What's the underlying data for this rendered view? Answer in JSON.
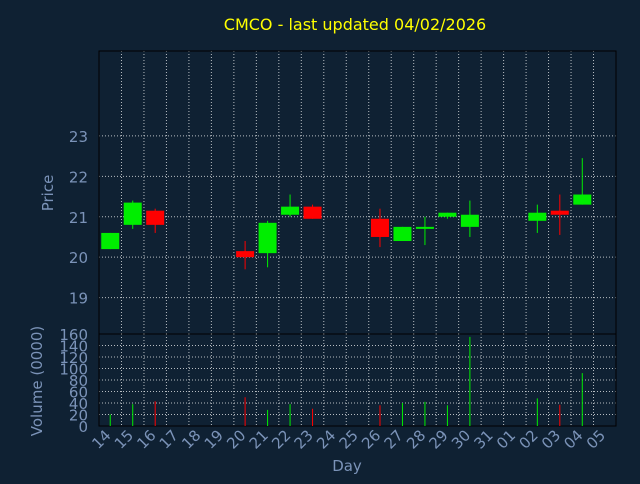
{
  "chart_data": {
    "type": "candlestick",
    "title": "CMCO - last updated 04/02/2026",
    "xlabel": "Day",
    "price_panel": {
      "ylabel": "Price",
      "ylim": [
        18.1,
        25.1
      ],
      "yticks": [
        19,
        20,
        21,
        22,
        23
      ],
      "candles": [
        {
          "day": "14",
          "open": 20.2,
          "high": 20.6,
          "low": 20.2,
          "close": 20.6
        },
        {
          "day": "15",
          "open": 20.8,
          "high": 21.4,
          "low": 20.7,
          "close": 21.35
        },
        {
          "day": "16",
          "open": 21.15,
          "high": 21.2,
          "low": 20.6,
          "close": 20.8
        },
        {
          "day": "20",
          "open": 20.15,
          "high": 20.4,
          "low": 19.7,
          "close": 20.0
        },
        {
          "day": "21",
          "open": 20.1,
          "high": 20.9,
          "low": 19.75,
          "close": 20.85
        },
        {
          "day": "22",
          "open": 21.05,
          "high": 21.55,
          "low": 21.0,
          "close": 21.25
        },
        {
          "day": "23",
          "open": 21.25,
          "high": 21.3,
          "low": 20.95,
          "close": 20.95
        },
        {
          "day": "26",
          "open": 20.95,
          "high": 21.2,
          "low": 20.25,
          "close": 20.5
        },
        {
          "day": "27",
          "open": 20.4,
          "high": 20.75,
          "low": 20.4,
          "close": 20.75
        },
        {
          "day": "28",
          "open": 20.7,
          "high": 21.0,
          "low": 20.3,
          "close": 20.75
        },
        {
          "day": "29",
          "open": 21.0,
          "high": 21.1,
          "low": 20.95,
          "close": 21.1
        },
        {
          "day": "30",
          "open": 20.75,
          "high": 21.4,
          "low": 20.5,
          "close": 21.05
        },
        {
          "day": "02",
          "open": 20.9,
          "high": 21.3,
          "low": 20.6,
          "close": 21.1
        },
        {
          "day": "03",
          "open": 21.15,
          "high": 21.55,
          "low": 20.55,
          "close": 21.05
        },
        {
          "day": "04",
          "open": 21.3,
          "high": 22.45,
          "low": 21.3,
          "close": 21.55
        }
      ]
    },
    "volume_panel": {
      "ylabel": "Volume (0000)",
      "ylim": [
        0,
        160
      ],
      "yticks": [
        0,
        20,
        40,
        60,
        80,
        100,
        120,
        140,
        160
      ],
      "bars": [
        {
          "day": "14",
          "value": 20,
          "direction": "up"
        },
        {
          "day": "15",
          "value": 38,
          "direction": "up"
        },
        {
          "day": "16",
          "value": 43,
          "direction": "down"
        },
        {
          "day": "20",
          "value": 50,
          "direction": "down"
        },
        {
          "day": "21",
          "value": 28,
          "direction": "up"
        },
        {
          "day": "22",
          "value": 38,
          "direction": "up"
        },
        {
          "day": "23",
          "value": 30,
          "direction": "down"
        },
        {
          "day": "26",
          "value": 36,
          "direction": "down"
        },
        {
          "day": "27",
          "value": 40,
          "direction": "up"
        },
        {
          "day": "28",
          "value": 42,
          "direction": "up"
        },
        {
          "day": "29",
          "value": 36,
          "direction": "up"
        },
        {
          "day": "30",
          "value": 155,
          "direction": "up"
        },
        {
          "day": "02",
          "value": 48,
          "direction": "up"
        },
        {
          "day": "03",
          "value": 37,
          "direction": "down"
        },
        {
          "day": "04",
          "value": 92,
          "direction": "up"
        }
      ]
    },
    "x_tick_labels": [
      "14",
      "15",
      "16",
      "17",
      "18",
      "19",
      "20",
      "21",
      "22",
      "23",
      "24",
      "25",
      "26",
      "27",
      "28",
      "29",
      "30",
      "31",
      "01",
      "02",
      "03",
      "04",
      "05"
    ],
    "grid": true,
    "colors": {
      "background": "#0f2133",
      "panel": "#0f2133",
      "grid": "#ffffff",
      "axis_text": "#7b93b8",
      "title": "#ffff00",
      "up": "#00ee00",
      "down": "#ff0000",
      "label": "#7b93b8"
    }
  }
}
